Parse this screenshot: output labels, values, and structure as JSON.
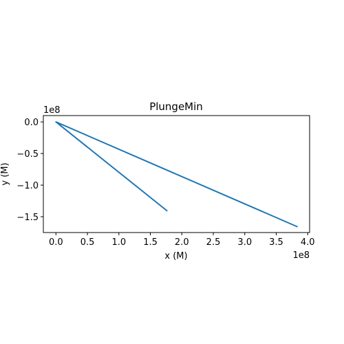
{
  "chart_data": {
    "type": "line",
    "title": "PlungeMin",
    "xlabel": "x (M)",
    "ylabel": "y (M)",
    "x_offset_text": "1e8",
    "y_offset_text": "1e8",
    "xlim": [
      -20000000.0,
      403000000.0
    ],
    "ylim": [
      -175000000.0,
      10000000.0
    ],
    "x_ticks": [
      0,
      50000000.0,
      100000000.0,
      150000000.0,
      200000000.0,
      250000000.0,
      300000000.0,
      350000000.0,
      400000000.0
    ],
    "x_tick_labels": [
      "0.0",
      "0.5",
      "1.0",
      "1.5",
      "2.0",
      "2.5",
      "3.0",
      "3.5",
      "4.0"
    ],
    "y_ticks": [
      0,
      -50000000.0,
      -100000000.0,
      -150000000.0
    ],
    "y_tick_labels": [
      "0.0",
      "−0.5",
      "−1.0",
      "−1.5"
    ],
    "grid": false,
    "legend": "none",
    "series": [
      {
        "color": "#1f77b4",
        "x": [
          177000000.0,
          0,
          384000000.0
        ],
        "y": [
          -141000000.0,
          0,
          -166000000.0
        ]
      }
    ]
  }
}
